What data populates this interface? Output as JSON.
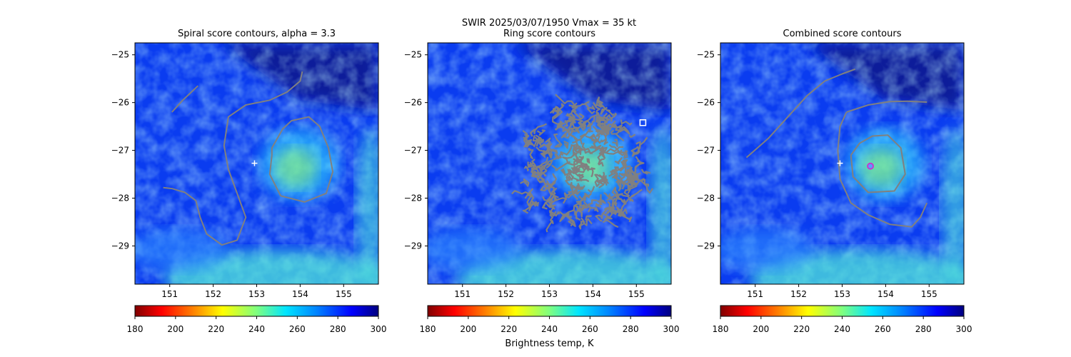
{
  "suptitle": "SWIR  2025/03/07/1950    Vmax = 35 kt",
  "colorbar": {
    "label": "Brightness temp, K",
    "ticks": [
      180,
      200,
      220,
      240,
      260,
      280,
      300
    ],
    "range": [
      180,
      300
    ],
    "colormap": "jet_r"
  },
  "chart_data": [
    {
      "type": "heatmap",
      "title": "Spiral score contours, alpha =  3.3",
      "xlim": [
        150.2,
        155.8
      ],
      "ylim": [
        -29.8,
        -24.75
      ],
      "xticks": [
        151,
        152,
        153,
        154,
        155
      ],
      "yticks": [
        -25,
        -26,
        -27,
        -28,
        -29
      ],
      "markers": [
        {
          "symbol": "plus",
          "x": 152.95,
          "y": -27.27,
          "color": "#ffffff"
        }
      ],
      "contours": [
        {
          "color": "#808080",
          "points": [
            [
              151.05,
              -26.2
            ],
            [
              151.3,
              -25.95
            ],
            [
              151.65,
              -25.65
            ]
          ]
        },
        {
          "color": "#808080",
          "points": [
            [
              150.85,
              -27.78
            ],
            [
              151.05,
              -27.8
            ],
            [
              151.35,
              -27.88
            ],
            [
              151.6,
              -28.05
            ],
            [
              151.7,
              -28.4
            ],
            [
              151.85,
              -28.75
            ],
            [
              152.2,
              -28.98
            ],
            [
              152.55,
              -28.88
            ],
            [
              152.75,
              -28.4
            ],
            [
              152.55,
              -27.9
            ],
            [
              152.35,
              -27.4
            ],
            [
              152.25,
              -26.9
            ],
            [
              152.35,
              -26.3
            ],
            [
              152.75,
              -26.05
            ],
            [
              153.3,
              -25.95
            ],
            [
              153.7,
              -25.78
            ],
            [
              154.0,
              -25.55
            ],
            [
              154.05,
              -25.35
            ]
          ]
        },
        {
          "color": "#808080",
          "points": [
            [
              153.35,
              -27.1
            ],
            [
              153.3,
              -27.5
            ],
            [
              153.55,
              -27.95
            ],
            [
              154.1,
              -28.08
            ],
            [
              154.6,
              -27.9
            ],
            [
              154.75,
              -27.45
            ],
            [
              154.65,
              -26.95
            ],
            [
              154.45,
              -26.5
            ],
            [
              154.2,
              -26.3
            ],
            [
              153.8,
              -26.38
            ],
            [
              153.6,
              -26.55
            ],
            [
              153.35,
              -26.95
            ],
            [
              153.35,
              -27.1
            ]
          ]
        }
      ]
    },
    {
      "type": "heatmap",
      "title": "Ring score contours",
      "xlim": [
        150.2,
        155.8
      ],
      "ylim": [
        -29.8,
        -24.75
      ],
      "xticks": [
        151,
        152,
        153,
        154,
        155
      ],
      "yticks": [
        -25,
        -26,
        -27,
        -28,
        -29
      ],
      "markers": [
        {
          "symbol": "square",
          "x": 155.15,
          "y": -26.42,
          "color": "#ffffff"
        }
      ],
      "contour_region": {
        "center": [
          153.75,
          -27.3
        ],
        "radius_deg_x": 1.45,
        "radius_deg_y": 1.35,
        "color": "#808080"
      }
    },
    {
      "type": "heatmap",
      "title": "Combined score contours",
      "xlim": [
        150.2,
        155.8
      ],
      "ylim": [
        -29.8,
        -24.75
      ],
      "xticks": [
        151,
        152,
        153,
        154,
        155
      ],
      "yticks": [
        -25,
        -26,
        -27,
        -28,
        -29
      ],
      "markers": [
        {
          "symbol": "plus",
          "x": 152.95,
          "y": -27.27,
          "color": "#ffffff"
        },
        {
          "symbol": "circle",
          "x": 153.65,
          "y": -27.33,
          "color": "#cc33cc"
        }
      ],
      "contours": [
        {
          "color": "#808080",
          "points": [
            [
              150.8,
              -27.15
            ],
            [
              151.3,
              -26.75
            ],
            [
              151.75,
              -26.3
            ],
            [
              152.2,
              -25.85
            ],
            [
              152.6,
              -25.55
            ],
            [
              153.0,
              -25.4
            ],
            [
              153.3,
              -25.3
            ]
          ]
        },
        {
          "color": "#808080",
          "points": [
            [
              153.1,
              -26.2
            ],
            [
              153.6,
              -26.05
            ],
            [
              154.1,
              -25.98
            ],
            [
              154.5,
              -25.97
            ],
            [
              154.95,
              -25.99
            ]
          ]
        },
        {
          "color": "#808080",
          "points": [
            [
              153.1,
              -26.2
            ],
            [
              152.95,
              -26.5
            ],
            [
              152.9,
              -27.0
            ],
            [
              152.95,
              -27.6
            ],
            [
              153.2,
              -28.1
            ],
            [
              153.6,
              -28.35
            ],
            [
              154.1,
              -28.55
            ],
            [
              154.6,
              -28.6
            ],
            [
              154.8,
              -28.4
            ],
            [
              154.95,
              -28.1
            ]
          ]
        },
        {
          "color": "#808080",
          "points": [
            [
              153.2,
              -27.1
            ],
            [
              153.25,
              -27.55
            ],
            [
              153.6,
              -27.88
            ],
            [
              154.2,
              -27.85
            ],
            [
              154.45,
              -27.5
            ],
            [
              154.35,
              -26.95
            ],
            [
              154.05,
              -26.68
            ],
            [
              153.7,
              -26.7
            ],
            [
              153.4,
              -26.85
            ],
            [
              153.2,
              -27.1
            ]
          ]
        }
      ]
    }
  ]
}
